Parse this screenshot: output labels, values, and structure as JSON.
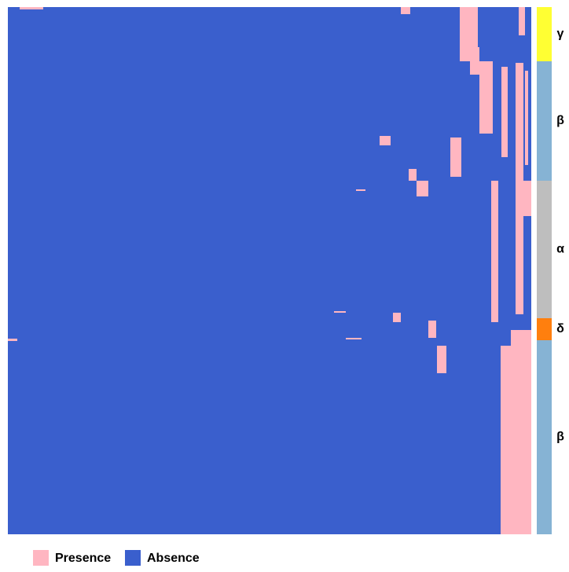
{
  "groups": [
    {
      "label": "γ",
      "color": "#ffff33"
    },
    {
      "label": "β",
      "color": "#86b3d4"
    },
    {
      "label": "α",
      "color": "#bebebe"
    },
    {
      "label": "δ",
      "color": "#ff7f0e"
    },
    {
      "label": "β",
      "color": "#86b3d4"
    }
  ],
  "legend": [
    {
      "label": "Presence",
      "color": "#ffb6c1"
    },
    {
      "label": "Absence",
      "color": "#3a5fcd"
    }
  ]
}
